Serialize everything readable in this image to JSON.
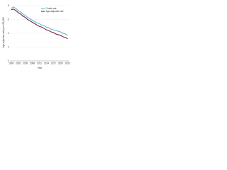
{
  "chart_data": {
    "type": "line",
    "y_label": "Age-adjusted rate per 100,000",
    "x_label": "Year",
    "x": [
      1999,
      2000,
      2001,
      2002,
      2003,
      2004,
      2005,
      2006,
      2007,
      2008,
      2009,
      2010,
      2011,
      2012,
      2013,
      2014,
      2015,
      2016,
      2017,
      2018,
      2019,
      2020,
      2021,
      2022,
      2023
    ],
    "series": [
      {
        "name": "Crude rate",
        "color": "#5fb4d8",
        "values": [
          7.6,
          7.8,
          7.6,
          7.3,
          7.1,
          6.8,
          6.6,
          6.3,
          6.1,
          5.9,
          5.7,
          5.5,
          5.4,
          5.2,
          5.1,
          4.9,
          4.8,
          4.6,
          4.5,
          4.4,
          4.3,
          4.2,
          4.0,
          3.9,
          3.7
        ]
      },
      {
        "name": "Age-adjusted rate",
        "color": "#7a1f3d",
        "values": [
          7.4,
          7.5,
          7.3,
          7.0,
          6.8,
          6.5,
          6.3,
          6.0,
          5.8,
          5.6,
          5.4,
          5.2,
          5.0,
          4.9,
          4.7,
          4.5,
          4.4,
          4.2,
          4.1,
          3.9,
          3.8,
          3.7,
          3.5,
          3.4,
          3.2
        ]
      }
    ],
    "xlim": [
      1998.5,
      2023.5
    ],
    "xticks": [
      1999,
      2002,
      2005,
      2008,
      2011,
      2014,
      2017,
      2020,
      2023
    ],
    "ylim": [
      0,
      8
    ],
    "yticks": [
      0,
      2,
      4,
      6,
      8
    ],
    "grid": true,
    "legend": "top-right"
  }
}
